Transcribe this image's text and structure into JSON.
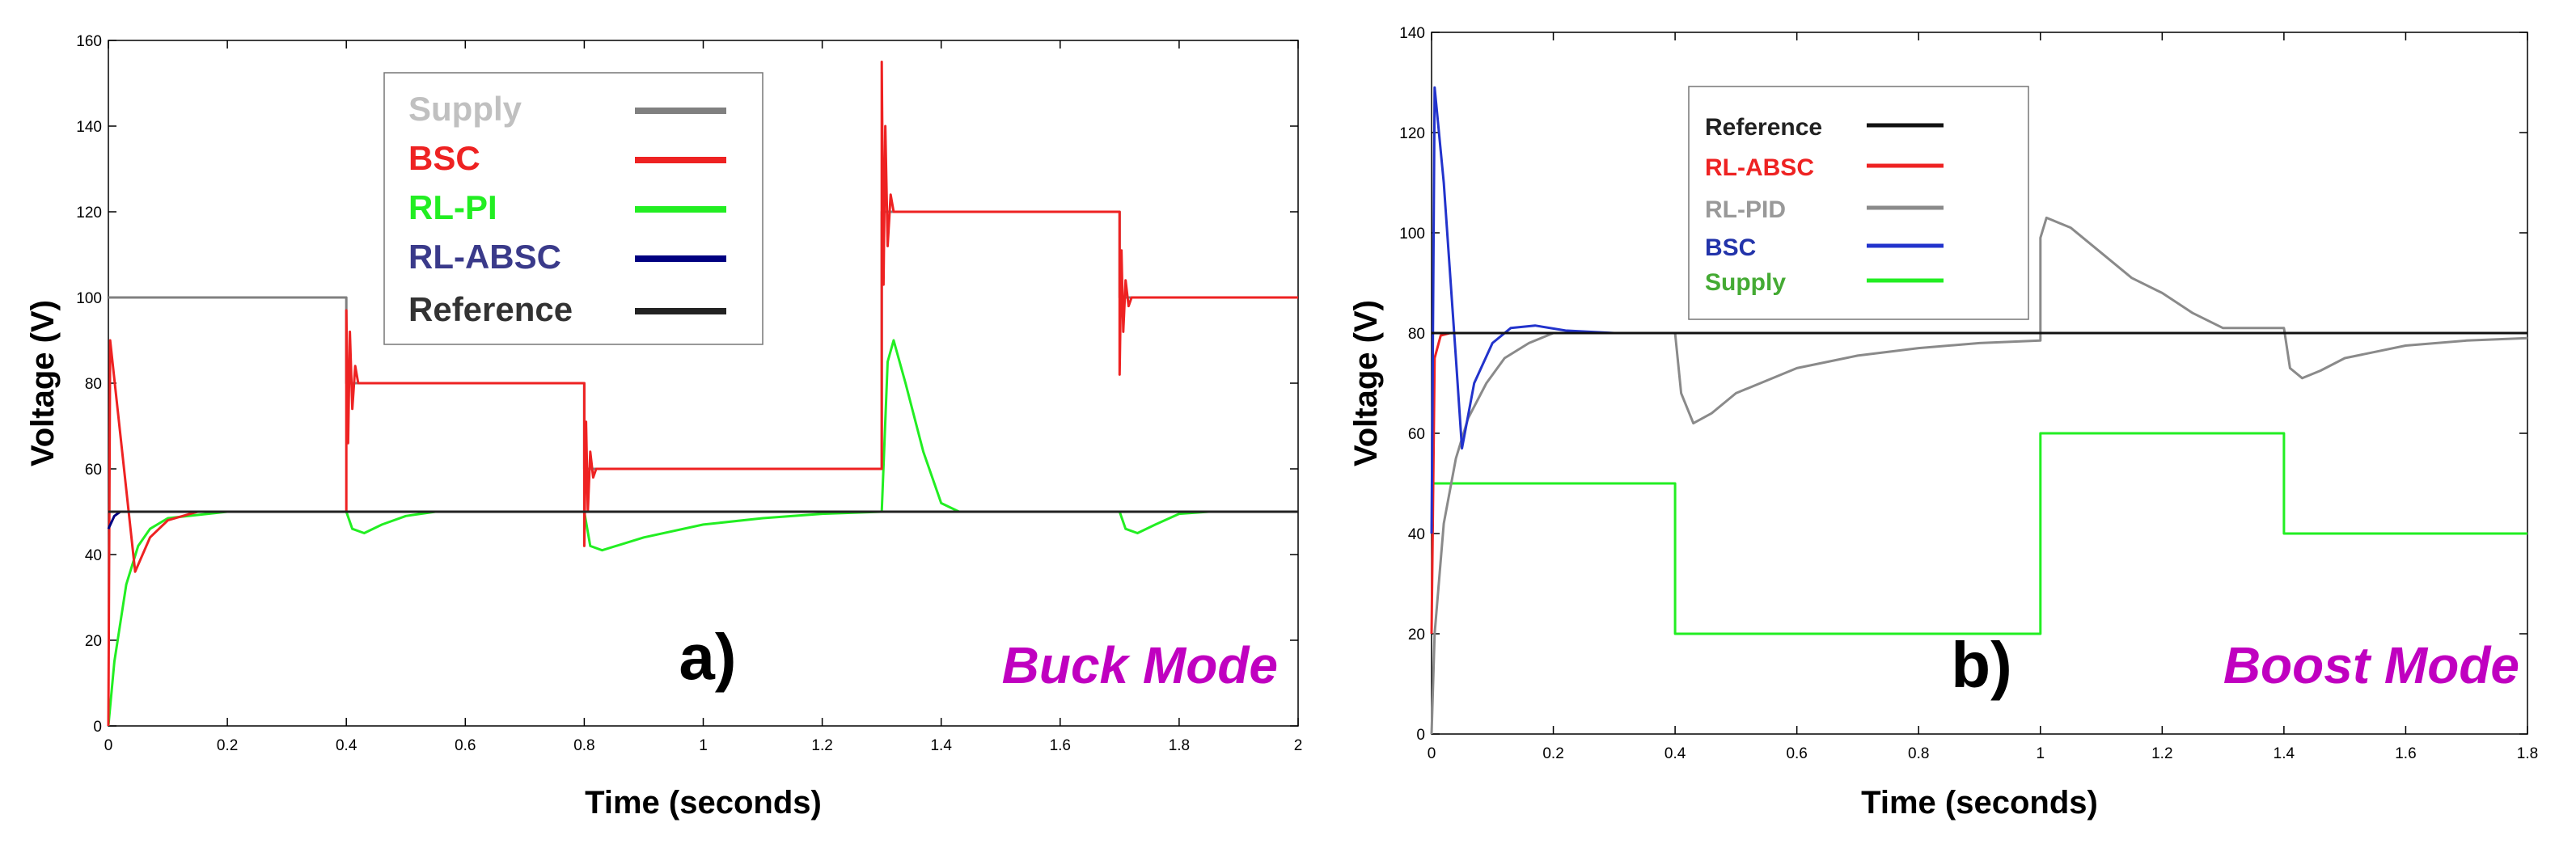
{
  "chart_data": [
    {
      "type": "line",
      "panel_label": "a)",
      "mode_label": "Buck Mode",
      "xlabel": "Time (seconds)",
      "ylabel": "Voltage (V)",
      "xlim": [
        0,
        2
      ],
      "ylim": [
        0,
        160
      ],
      "xticks": [
        "0",
        "0.2",
        "0.4",
        "0.6",
        "0.8",
        "1",
        "1.2",
        "1.4",
        "1.6",
        "1.8",
        "2"
      ],
      "yticks": [
        "0",
        "20",
        "40",
        "60",
        "80",
        "100",
        "120",
        "140",
        "160"
      ],
      "grid": false,
      "legend_position": "top-center",
      "series": [
        {
          "name": "Supply",
          "color": "#808080",
          "points": [
            [
              0,
              100
            ],
            [
              0.4,
              100
            ],
            [
              0.4,
              80
            ],
            [
              0.8,
              80
            ],
            [
              0.8,
              60
            ],
            [
              1.3,
              60
            ],
            [
              1.3,
              120
            ],
            [
              1.7,
              120
            ],
            [
              1.7,
              100
            ],
            [
              2,
              100
            ]
          ]
        },
        {
          "name": "BSC",
          "color": "#ee2222",
          "points": [
            [
              0,
              0
            ],
            [
              0.003,
              90
            ],
            [
              0.045,
              36
            ],
            [
              0.07,
              44
            ],
            [
              0.1,
              48
            ],
            [
              0.15,
              50
            ],
            [
              0.4,
              50
            ],
            [
              0.4,
              97
            ],
            [
              0.403,
              66
            ],
            [
              0.406,
              92
            ],
            [
              0.41,
              74
            ],
            [
              0.415,
              84
            ],
            [
              0.42,
              80
            ],
            [
              0.8,
              80
            ],
            [
              0.8,
              42
            ],
            [
              0.803,
              71
            ],
            [
              0.806,
              50
            ],
            [
              0.81,
              64
            ],
            [
              0.815,
              58
            ],
            [
              0.82,
              60
            ],
            [
              1.3,
              60
            ],
            [
              1.3,
              155
            ],
            [
              1.303,
              103
            ],
            [
              1.306,
              140
            ],
            [
              1.31,
              112
            ],
            [
              1.315,
              124
            ],
            [
              1.32,
              120
            ],
            [
              1.7,
              120
            ],
            [
              1.7,
              82
            ],
            [
              1.703,
              111
            ],
            [
              1.706,
              92
            ],
            [
              1.71,
              104
            ],
            [
              1.715,
              98
            ],
            [
              1.72,
              100
            ],
            [
              2,
              100
            ]
          ]
        },
        {
          "name": "RL-PI",
          "color": "#22ee22",
          "points": [
            [
              0,
              0
            ],
            [
              0.01,
              15
            ],
            [
              0.03,
              33
            ],
            [
              0.05,
              42
            ],
            [
              0.07,
              46
            ],
            [
              0.1,
              48.5
            ],
            [
              0.2,
              50
            ],
            [
              0.4,
              50
            ],
            [
              0.41,
              46
            ],
            [
              0.43,
              45
            ],
            [
              0.46,
              47
            ],
            [
              0.5,
              49
            ],
            [
              0.55,
              50
            ],
            [
              0.8,
              50
            ],
            [
              0.81,
              42
            ],
            [
              0.83,
              41
            ],
            [
              0.9,
              44
            ],
            [
              1.0,
              47
            ],
            [
              1.1,
              48.5
            ],
            [
              1.2,
              49.5
            ],
            [
              1.3,
              50
            ],
            [
              1.31,
              85
            ],
            [
              1.32,
              90
            ],
            [
              1.34,
              80
            ],
            [
              1.37,
              64
            ],
            [
              1.4,
              52
            ],
            [
              1.43,
              50
            ],
            [
              1.7,
              50
            ],
            [
              1.71,
              46
            ],
            [
              1.73,
              45
            ],
            [
              1.76,
              47
            ],
            [
              1.8,
              49.5
            ],
            [
              1.85,
              50
            ],
            [
              2,
              50
            ]
          ]
        },
        {
          "name": "RL-ABSC",
          "color": "#000080",
          "points": [
            [
              0,
              46
            ],
            [
              0.01,
              49
            ],
            [
              0.02,
              50
            ],
            [
              2,
              50
            ]
          ]
        },
        {
          "name": "Reference",
          "color": "#222222",
          "points": [
            [
              0,
              50
            ],
            [
              2,
              50
            ]
          ]
        }
      ]
    },
    {
      "type": "line",
      "panel_label": "b)",
      "mode_label": "Boost Mode",
      "xlabel": "Time (seconds)",
      "ylabel": "Voltage (V)",
      "xlim": [
        0,
        1.8
      ],
      "ylim": [
        0,
        140
      ],
      "xticks": [
        "0",
        "0.2",
        "0.4",
        "0.6",
        "0.8",
        "1",
        "1.2",
        "1.4",
        "1.6",
        "1.8"
      ],
      "yticks": [
        "0",
        "20",
        "40",
        "60",
        "80",
        "100",
        "120",
        "140"
      ],
      "grid": false,
      "legend_position": "top-left",
      "series": [
        {
          "name": "Reference",
          "color": "#111111",
          "points": [
            [
              0,
              80
            ],
            [
              1.8,
              80
            ]
          ]
        },
        {
          "name": "RL-ABSC",
          "color": "#ee2222",
          "points": [
            [
              0,
              20
            ],
            [
              0.005,
              75
            ],
            [
              0.015,
              79.5
            ],
            [
              0.03,
              80
            ],
            [
              1.8,
              80
            ]
          ]
        },
        {
          "name": "RL-PID",
          "color": "#8a8a8a",
          "points": [
            [
              0,
              0
            ],
            [
              0.005,
              20
            ],
            [
              0.02,
              42
            ],
            [
              0.04,
              55
            ],
            [
              0.06,
              63
            ],
            [
              0.09,
              70
            ],
            [
              0.12,
              75
            ],
            [
              0.16,
              78
            ],
            [
              0.2,
              80
            ],
            [
              0.4,
              80
            ],
            [
              0.41,
              68
            ],
            [
              0.43,
              62
            ],
            [
              0.46,
              64
            ],
            [
              0.5,
              68
            ],
            [
              0.6,
              73
            ],
            [
              0.7,
              75.5
            ],
            [
              0.8,
              77
            ],
            [
              0.9,
              78
            ],
            [
              1.0,
              78.5
            ],
            [
              1.0,
              99
            ],
            [
              1.01,
              103
            ],
            [
              1.05,
              101
            ],
            [
              1.1,
              96
            ],
            [
              1.15,
              91
            ],
            [
              1.2,
              88
            ],
            [
              1.25,
              84
            ],
            [
              1.3,
              81
            ],
            [
              1.4,
              81
            ],
            [
              1.41,
              73
            ],
            [
              1.43,
              71
            ],
            [
              1.46,
              72.5
            ],
            [
              1.5,
              75
            ],
            [
              1.6,
              77.5
            ],
            [
              1.7,
              78.5
            ],
            [
              1.8,
              79
            ]
          ]
        },
        {
          "name": "BSC",
          "color": "#2233cc",
          "points": [
            [
              0,
              40
            ],
            [
              0.005,
              129
            ],
            [
              0.02,
              110
            ],
            [
              0.04,
              75
            ],
            [
              0.05,
              57
            ],
            [
              0.07,
              70
            ],
            [
              0.1,
              78
            ],
            [
              0.13,
              81
            ],
            [
              0.17,
              81.5
            ],
            [
              0.22,
              80.5
            ],
            [
              0.3,
              80
            ],
            [
              1.8,
              80
            ]
          ]
        },
        {
          "name": "Supply",
          "color": "#22ee22",
          "points": [
            [
              0,
              50
            ],
            [
              0.4,
              50
            ],
            [
              0.4,
              20
            ],
            [
              1.0,
              20
            ],
            [
              1.0,
              60
            ],
            [
              1.4,
              60
            ],
            [
              1.4,
              40
            ],
            [
              1.8,
              40
            ]
          ]
        }
      ]
    }
  ]
}
